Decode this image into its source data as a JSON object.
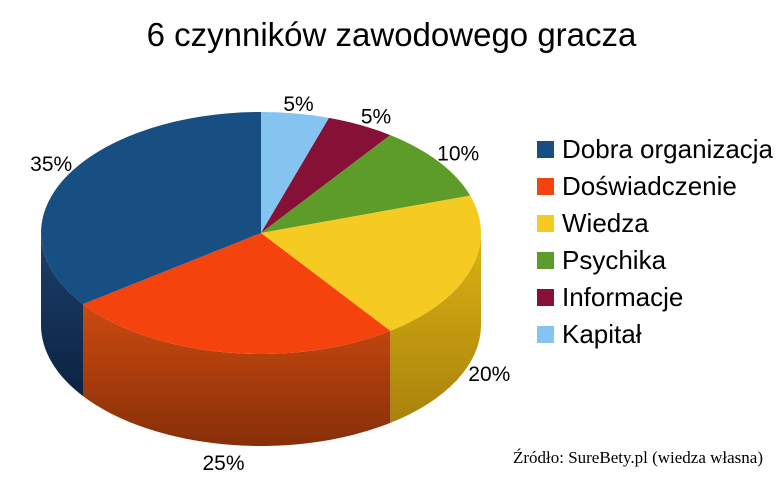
{
  "title": "6 czynników zawodowego gracza",
  "source": "Źródło: SureBety.pl (wiedza własna)",
  "chart_data": {
    "type": "pie",
    "style": "3d",
    "title": "6 czynników zawodowego gracza",
    "legend_position": "right",
    "slice_order": "counterclockwise-from-top",
    "slices": [
      {
        "id": "dobra-organizacja",
        "label": "Dobra organizacja",
        "value": 35,
        "pct_label": "35%",
        "color": "#174F82",
        "side_top": "#1C3F6B",
        "side_bottom": "#0C2342"
      },
      {
        "id": "doswiadczenie",
        "label": "Doświadczenie",
        "value": 25,
        "pct_label": "25%",
        "color": "#F5430E",
        "side_top": "#CC4A10",
        "side_bottom": "#872F08"
      },
      {
        "id": "wiedza",
        "label": "Wiedza",
        "value": 20,
        "pct_label": "20%",
        "color": "#F5CB22",
        "side_top": "#DDB214",
        "side_bottom": "#A8820C"
      },
      {
        "id": "psychika",
        "label": "Psychika",
        "value": 10,
        "pct_label": "10%",
        "color": "#5E9C2A"
      },
      {
        "id": "informacje",
        "label": "Informacje",
        "value": 5,
        "pct_label": "5%",
        "color": "#861036"
      },
      {
        "id": "kapital",
        "label": "Kapitał",
        "value": 5,
        "pct_label": "5%",
        "color": "#85C3F0"
      }
    ]
  }
}
